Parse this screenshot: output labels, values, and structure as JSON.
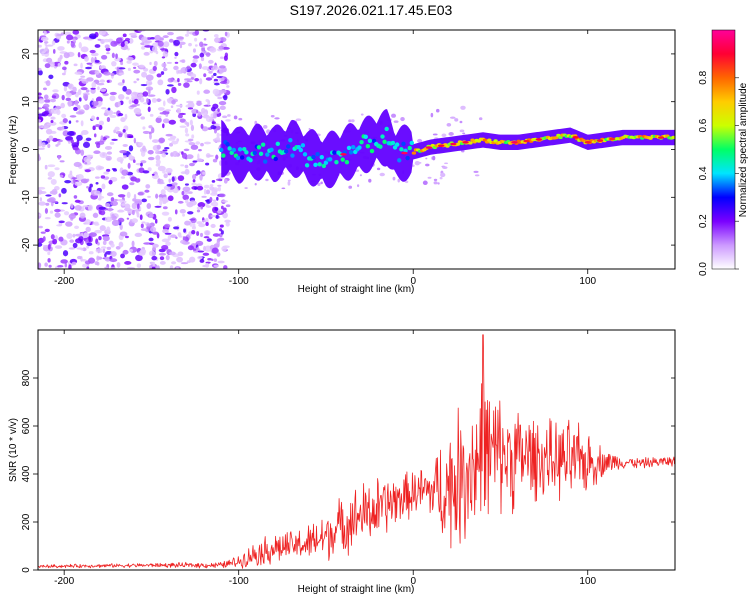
{
  "title": "S197.2026.021.17.45.E03",
  "chart_data": [
    {
      "type": "heatmap",
      "title": "S197.2026.021.17.45.E03",
      "xlabel": "Height of straight line (km)",
      "ylabel": "Frequency (Hz)",
      "xlim": [
        -215,
        150
      ],
      "ylim": [
        -25,
        25
      ],
      "x_ticks": [
        -200,
        -100,
        0,
        100
      ],
      "y_ticks": [
        -20,
        -10,
        0,
        10,
        20
      ],
      "colorbar": {
        "label": "Normalized spectral amplitude",
        "range": [
          0.0,
          1.0
        ],
        "ticks": [
          0.0,
          0.2,
          0.4,
          0.6,
          0.8
        ],
        "tick_labels": [
          "0.0",
          "0.2",
          "0.4",
          "0.6",
          "0.8"
        ],
        "colors": [
          "#ffffff",
          "#cc99ff",
          "#7a00ff",
          "#0000ff",
          "#00e5ff",
          "#00ff66",
          "#ccff00",
          "#ffcc00",
          "#ff6600",
          "#ff0033",
          "#ff0099"
        ]
      },
      "ridge": {
        "x": [
          -110,
          -100,
          -90,
          -80,
          -70,
          -60,
          -50,
          -40,
          -30,
          -20,
          -15,
          -10,
          0,
          10,
          20,
          30,
          40,
          50,
          60,
          70,
          80,
          90,
          100,
          110,
          120,
          130,
          140,
          150
        ],
        "freq": [
          0.2,
          -1.2,
          -0.5,
          -1.0,
          0.5,
          -1.5,
          -2.5,
          -1.0,
          0.5,
          2.0,
          2.5,
          -1.0,
          -0.5,
          0.5,
          1.0,
          1.5,
          2.0,
          1.5,
          1.5,
          2.0,
          2.5,
          3.0,
          1.5,
          2.0,
          2.5,
          2.5,
          2.5,
          2.5
        ]
      },
      "noise_region_x": [
        -215,
        -110
      ]
    },
    {
      "type": "line",
      "xlabel": "Height of straight line (km)",
      "ylabel": "SNR (10 * v/v)",
      "xlim": [
        -215,
        150
      ],
      "ylim": [
        0,
        1000
      ],
      "x_ticks": [
        -200,
        -100,
        0,
        100
      ],
      "y_ticks": [
        0,
        200,
        400,
        600,
        800
      ],
      "color": "#ee2222",
      "envelope": {
        "x": [
          -215,
          -150,
          -110,
          -100,
          -90,
          -80,
          -70,
          -60,
          -50,
          -40,
          -30,
          -20,
          -10,
          0,
          10,
          20,
          30,
          40,
          50,
          60,
          70,
          80,
          90,
          100,
          110,
          120,
          130,
          140,
          150
        ],
        "baseline": [
          15,
          20,
          20,
          35,
          70,
          90,
          100,
          110,
          140,
          190,
          230,
          250,
          290,
          320,
          330,
          340,
          410,
          480,
          480,
          470,
          470,
          460,
          450,
          450,
          450,
          450,
          445,
          450,
          455
        ],
        "amplitude": [
          8,
          10,
          15,
          30,
          60,
          80,
          70,
          90,
          120,
          140,
          150,
          160,
          120,
          110,
          140,
          300,
          350,
          400,
          280,
          250,
          200,
          180,
          200,
          150,
          60,
          30,
          25,
          25,
          25
        ]
      },
      "peak": {
        "x": 40,
        "y": 980
      }
    }
  ]
}
